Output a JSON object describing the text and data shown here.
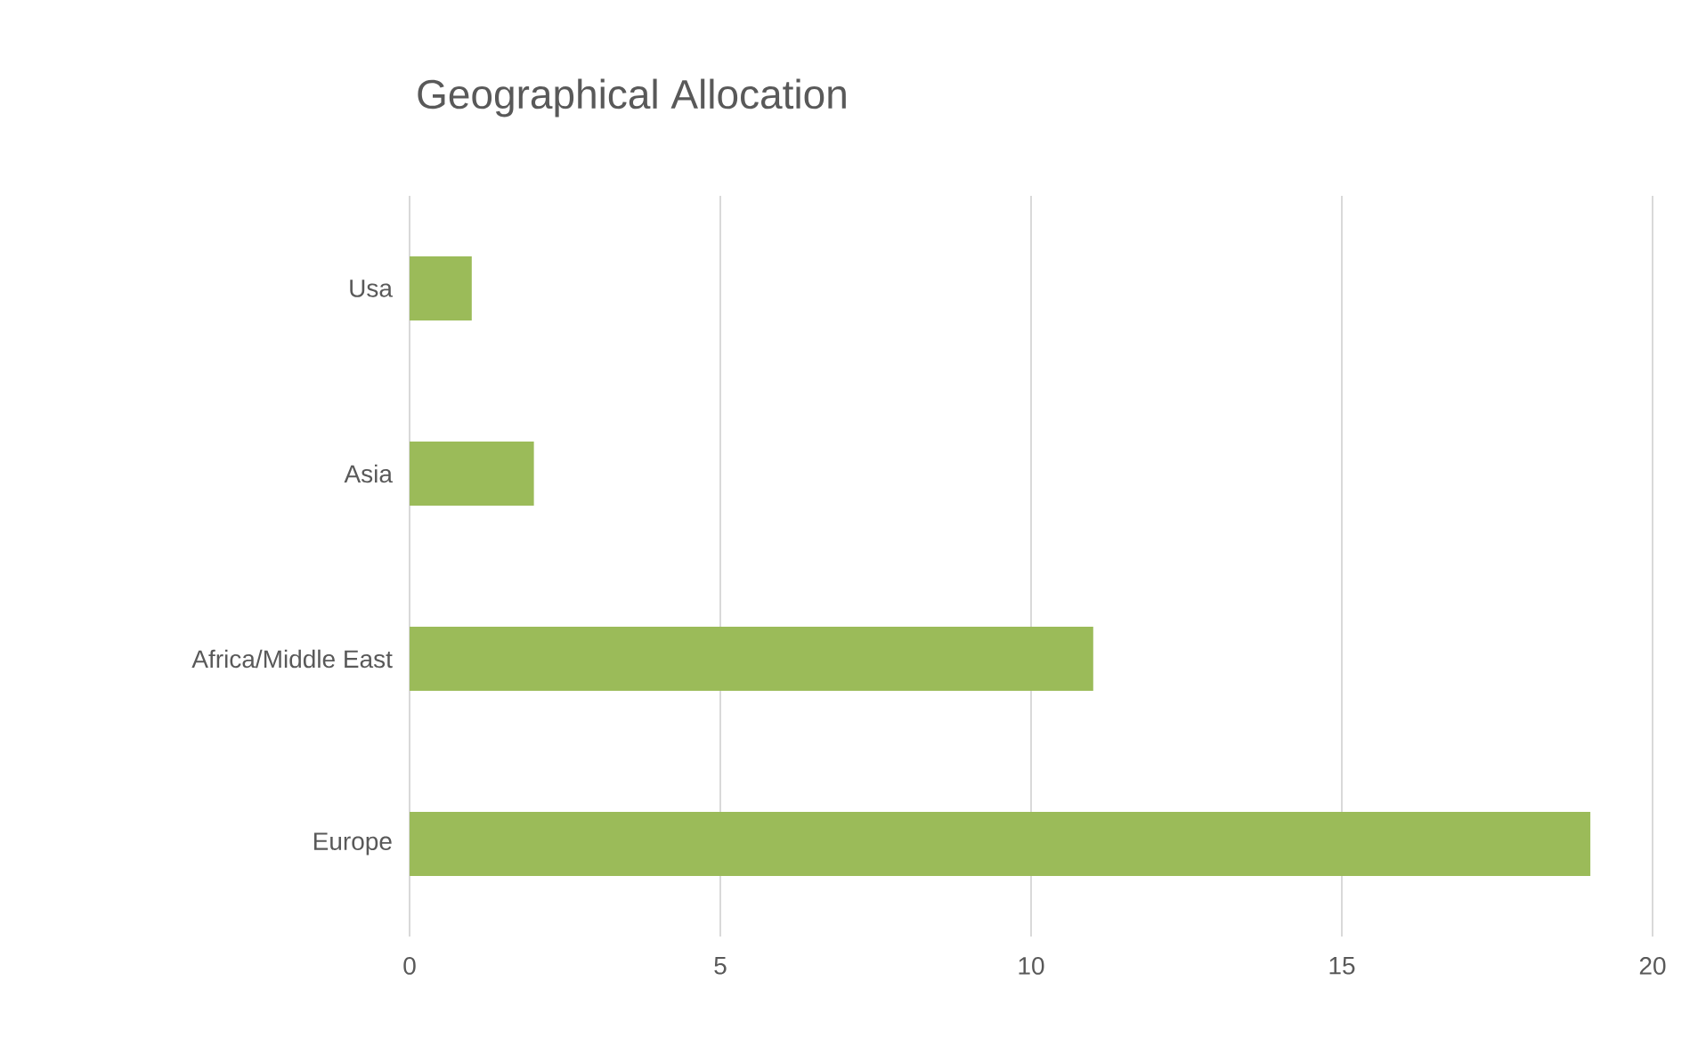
{
  "chart_data": {
    "type": "bar",
    "orientation": "horizontal",
    "title": "Geographical Allocation",
    "categories": [
      "Usa",
      "Asia",
      "Africa/Middle East",
      "Europe"
    ],
    "values": [
      1,
      2,
      11,
      19
    ],
    "color": "#9bbb59",
    "xlim": [
      0,
      20
    ],
    "xticks": [
      0,
      5,
      10,
      15,
      20
    ],
    "grid": "x"
  }
}
